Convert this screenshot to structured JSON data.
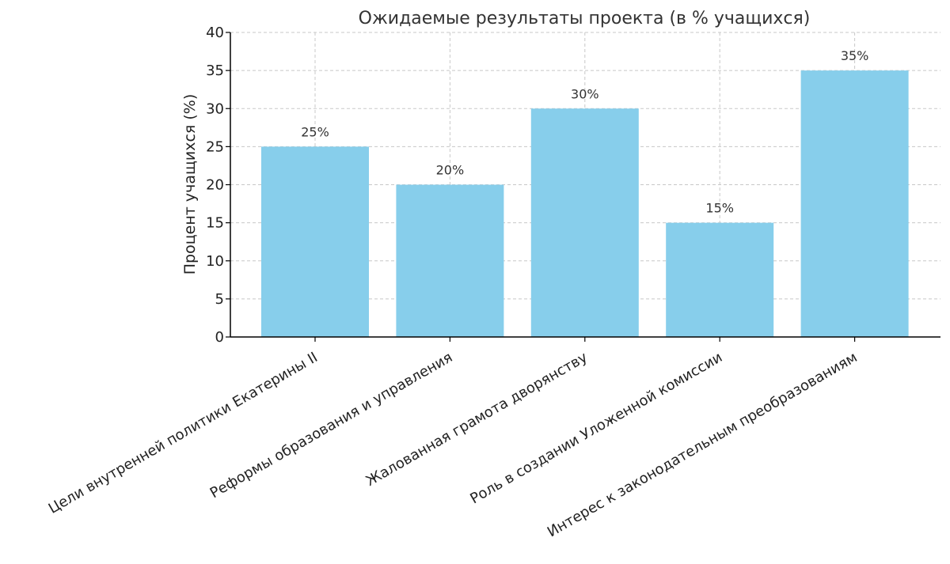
{
  "chart_data": {
    "type": "bar",
    "title": "Ожидаемые результаты проекта (в % учащихся)",
    "xlabel": "",
    "ylabel": "Процент учащихся (%)",
    "categories": [
      "Цели внутренней политики Екатерины II",
      "Реформы образования и управления",
      "Жалованная грамота дворянству",
      "Роль в создании Уложенной комиссии",
      "Интерес к законодательным преобразованиям"
    ],
    "values": [
      25,
      20,
      30,
      15,
      35
    ],
    "data_labels": [
      "25%",
      "20%",
      "30%",
      "15%",
      "35%"
    ],
    "ylim": [
      0,
      40
    ],
    "yticks": [
      0,
      5,
      10,
      15,
      20,
      25,
      30,
      35,
      40
    ],
    "grid": true,
    "colors": {
      "bar": "#87ceeb",
      "grid": "#c8c8c8",
      "axis": "#000000"
    }
  }
}
